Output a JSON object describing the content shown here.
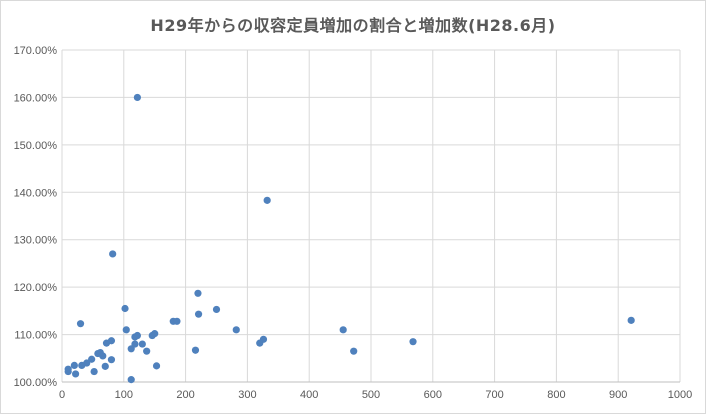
{
  "chart_data": {
    "type": "scatter",
    "title": "H29年からの収容定員増加の割合と増加数(H28.6月)",
    "xlabel": "",
    "ylabel": "",
    "xlim": [
      0,
      1000
    ],
    "ylim": [
      1.0,
      1.7
    ],
    "x_ticks": [
      "0",
      "100",
      "200",
      "300",
      "400",
      "500",
      "600",
      "700",
      "800",
      "900",
      "1000"
    ],
    "y_ticks": [
      "100.00%",
      "110.00%",
      "120.00%",
      "130.00%",
      "140.00%",
      "150.00%",
      "160.00%",
      "170.00%"
    ],
    "grid": true,
    "marker_color": "#4f81bd",
    "series": [
      {
        "points": [
          [
            10,
            1.027
          ],
          [
            10,
            1.022
          ],
          [
            20,
            1.035
          ],
          [
            22,
            1.017
          ],
          [
            30,
            1.123
          ],
          [
            32,
            1.035
          ],
          [
            40,
            1.04
          ],
          [
            48,
            1.048
          ],
          [
            52,
            1.022
          ],
          [
            58,
            1.06
          ],
          [
            62,
            1.062
          ],
          [
            66,
            1.055
          ],
          [
            70,
            1.033
          ],
          [
            72,
            1.082
          ],
          [
            80,
            1.087
          ],
          [
            80,
            1.047
          ],
          [
            82,
            1.27
          ],
          [
            102,
            1.155
          ],
          [
            104,
            1.11
          ],
          [
            112,
            1.07
          ],
          [
            112,
            1.005
          ],
          [
            118,
            1.08
          ],
          [
            118,
            1.095
          ],
          [
            122,
            1.098
          ],
          [
            122,
            1.6
          ],
          [
            130,
            1.08
          ],
          [
            137,
            1.065
          ],
          [
            146,
            1.098
          ],
          [
            150,
            1.102
          ],
          [
            153,
            1.034
          ],
          [
            180,
            1.128
          ],
          [
            186,
            1.128
          ],
          [
            216,
            1.067
          ],
          [
            220,
            1.187
          ],
          [
            221,
            1.143
          ],
          [
            250,
            1.153
          ],
          [
            282,
            1.11
          ],
          [
            320,
            1.082
          ],
          [
            326,
            1.09
          ],
          [
            332,
            1.383
          ],
          [
            455,
            1.11
          ],
          [
            472,
            1.065
          ],
          [
            568,
            1.085
          ],
          [
            921,
            1.13
          ]
        ]
      }
    ]
  }
}
